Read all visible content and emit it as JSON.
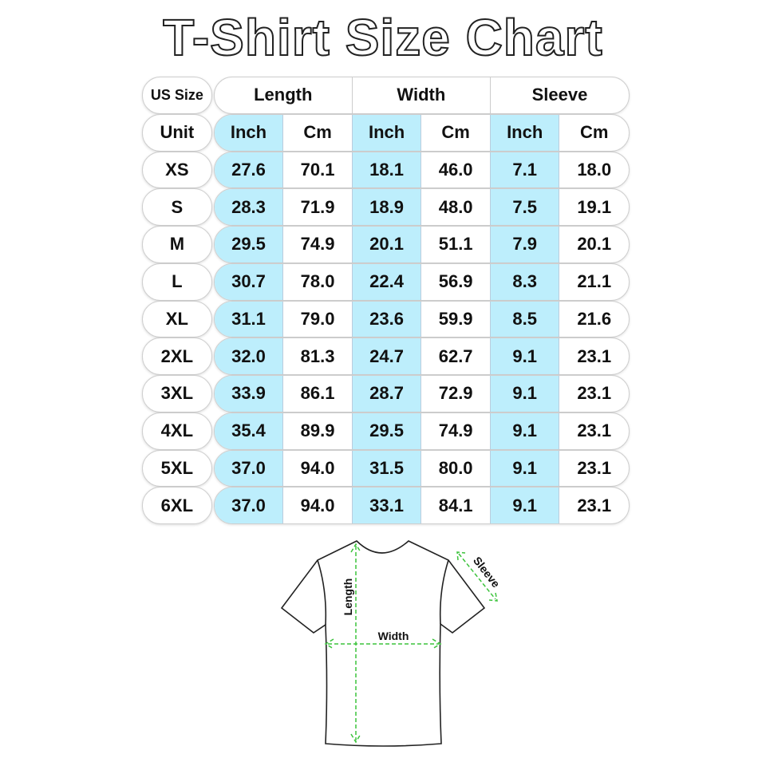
{
  "title": "T-Shirt Size Chart",
  "colors": {
    "inch_column": "#bdeefc",
    "measure_arrows": "#3cc33c",
    "outline": "#222222"
  },
  "chart_data": {
    "type": "table",
    "title": "T-Shirt Size Chart",
    "corner_label": "US Size",
    "unit_label": "Unit",
    "groups": [
      "Length",
      "Width",
      "Sleeve"
    ],
    "units": [
      "Inch",
      "Cm",
      "Inch",
      "Cm",
      "Inch",
      "Cm"
    ],
    "rows": [
      {
        "size": "XS",
        "values": [
          "27.6",
          "70.1",
          "18.1",
          "46.0",
          "7.1",
          "18.0"
        ]
      },
      {
        "size": "S",
        "values": [
          "28.3",
          "71.9",
          "18.9",
          "48.0",
          "7.5",
          "19.1"
        ]
      },
      {
        "size": "M",
        "values": [
          "29.5",
          "74.9",
          "20.1",
          "51.1",
          "7.9",
          "20.1"
        ]
      },
      {
        "size": "L",
        "values": [
          "30.7",
          "78.0",
          "22.4",
          "56.9",
          "8.3",
          "21.1"
        ]
      },
      {
        "size": "XL",
        "values": [
          "31.1",
          "79.0",
          "23.6",
          "59.9",
          "8.5",
          "21.6"
        ]
      },
      {
        "size": "2XL",
        "values": [
          "32.0",
          "81.3",
          "24.7",
          "62.7",
          "9.1",
          "23.1"
        ]
      },
      {
        "size": "3XL",
        "values": [
          "33.9",
          "86.1",
          "28.7",
          "72.9",
          "9.1",
          "23.1"
        ]
      },
      {
        "size": "4XL",
        "values": [
          "35.4",
          "89.9",
          "29.5",
          "74.9",
          "9.1",
          "23.1"
        ]
      },
      {
        "size": "5XL",
        "values": [
          "37.0",
          "94.0",
          "31.5",
          "80.0",
          "9.1",
          "23.1"
        ]
      },
      {
        "size": "6XL",
        "values": [
          "37.0",
          "94.0",
          "33.1",
          "84.1",
          "9.1",
          "23.1"
        ]
      }
    ]
  },
  "diagram": {
    "length_label": "Length",
    "width_label": "Width",
    "sleeve_label": "Sleeve"
  }
}
